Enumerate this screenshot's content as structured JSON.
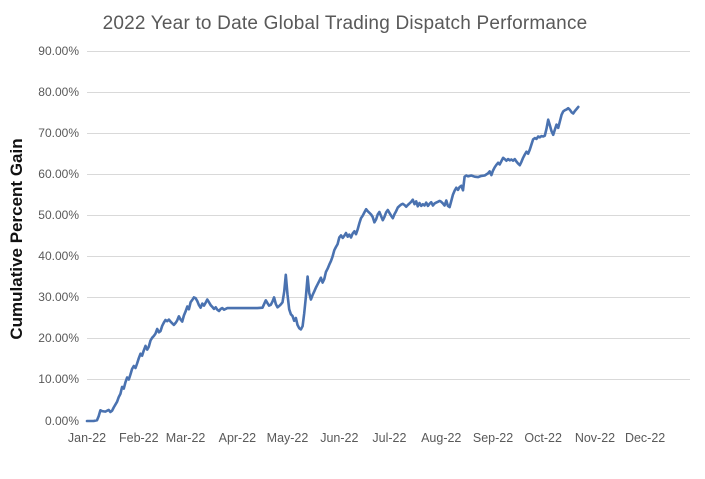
{
  "title": "2022 Year to Date Global Trading Dispatch Performance",
  "colors": {
    "line": "#4a72b0",
    "gridline": "#d9d9d9",
    "tick_label": "#595959",
    "title_text": "#595959",
    "y_axis_title_text": "#111111",
    "background": "#ffffff"
  },
  "chart_data": {
    "type": "line",
    "title": "2022 Year to Date Global Trading Dispatch Performance",
    "xlabel": "",
    "ylabel": "Cumulative Percent Gain",
    "legend": "none",
    "grid": "horizontal",
    "ylim": [
      0,
      90
    ],
    "y_tick_step": 10,
    "y_tick_labels": [
      "0.00%",
      "10.00%",
      "20.00%",
      "30.00%",
      "40.00%",
      "50.00%",
      "60.00%",
      "70.00%",
      "80.00%",
      "90.00%"
    ],
    "x_tick_labels": [
      "Jan-22",
      "Feb-22",
      "Mar-22",
      "Apr-22",
      "May-22",
      "Jun-22",
      "Jul-22",
      "Aug-22",
      "Sep-22",
      "Oct-22",
      "Nov-22",
      "Dec-22"
    ],
    "x_axis_note": "date axis Jan 1 2022 through Dec 2022; data ends about Oct 21 2022 at about 76.5%",
    "series": [
      {
        "name": "Cumulative Percent Gain",
        "x_unit": "day_of_year_2022",
        "y_unit": "percent",
        "points": [
          [
            0,
            0
          ],
          [
            2,
            0
          ],
          [
            4,
            0
          ],
          [
            6,
            0.2
          ],
          [
            7,
            1.2
          ],
          [
            8,
            2.6
          ],
          [
            9,
            2.4
          ],
          [
            11,
            2.3
          ],
          [
            13,
            2.7
          ],
          [
            14,
            2.2
          ],
          [
            15,
            2.5
          ],
          [
            16,
            3.3
          ],
          [
            18,
            4.7
          ],
          [
            19,
            5.8
          ],
          [
            20,
            6.6
          ],
          [
            21,
            8.3
          ],
          [
            22,
            7.9
          ],
          [
            23,
            9.4
          ],
          [
            24,
            10.6
          ],
          [
            25,
            10.1
          ],
          [
            26,
            11.3
          ],
          [
            27,
            12.7
          ],
          [
            28,
            13.4
          ],
          [
            29,
            12.9
          ],
          [
            30,
            14.0
          ],
          [
            31,
            15.3
          ],
          [
            32,
            16.4
          ],
          [
            33,
            15.9
          ],
          [
            34,
            17.2
          ],
          [
            35,
            18.3
          ],
          [
            36,
            17.4
          ],
          [
            37,
            18.1
          ],
          [
            38,
            19.6
          ],
          [
            39,
            20.3
          ],
          [
            40,
            20.7
          ],
          [
            41,
            21.3
          ],
          [
            42,
            22.4
          ],
          [
            43,
            21.6
          ],
          [
            44,
            21.9
          ],
          [
            45,
            23.2
          ],
          [
            46,
            24.0
          ],
          [
            47,
            24.6
          ],
          [
            48,
            24.3
          ],
          [
            49,
            24.7
          ],
          [
            50,
            24.2
          ],
          [
            51,
            23.8
          ],
          [
            52,
            23.4
          ],
          [
            53,
            23.9
          ],
          [
            54,
            24.5
          ],
          [
            55,
            25.5
          ],
          [
            56,
            24.7
          ],
          [
            57,
            24.2
          ],
          [
            58,
            25.7
          ],
          [
            59,
            26.7
          ],
          [
            60,
            27.9
          ],
          [
            61,
            27.2
          ],
          [
            62,
            28.9
          ],
          [
            63,
            29.5
          ],
          [
            64,
            30.1
          ],
          [
            65,
            29.9
          ],
          [
            66,
            29.2
          ],
          [
            67,
            28.2
          ],
          [
            68,
            27.6
          ],
          [
            69,
            28.6
          ],
          [
            70,
            28.1
          ],
          [
            71,
            28.8
          ],
          [
            72,
            29.6
          ],
          [
            73,
            28.9
          ],
          [
            74,
            28.2
          ],
          [
            75,
            27.8
          ],
          [
            76,
            27.3
          ],
          [
            77,
            27.7
          ],
          [
            78,
            27.1
          ],
          [
            79,
            26.8
          ],
          [
            80,
            27.3
          ],
          [
            81,
            27.5
          ],
          [
            82,
            27.1
          ],
          [
            84,
            27.5
          ],
          [
            86,
            27.5
          ],
          [
            90,
            27.5
          ],
          [
            94,
            27.5
          ],
          [
            98,
            27.5
          ],
          [
            102,
            27.5
          ],
          [
            105,
            27.6
          ],
          [
            107,
            29.4
          ],
          [
            108,
            28.7
          ],
          [
            109,
            28.1
          ],
          [
            110,
            28.3
          ],
          [
            111,
            29.1
          ],
          [
            112,
            30.1
          ],
          [
            113,
            28.5
          ],
          [
            114,
            27.7
          ],
          [
            115,
            28.0
          ],
          [
            116,
            28.4
          ],
          [
            117,
            28.9
          ],
          [
            118,
            31.5
          ],
          [
            119,
            35.6
          ],
          [
            120,
            30.8
          ],
          [
            121,
            27.2
          ],
          [
            122,
            26.0
          ],
          [
            123,
            25.6
          ],
          [
            124,
            24.4
          ],
          [
            125,
            25.1
          ],
          [
            126,
            23.4
          ],
          [
            127,
            22.6
          ],
          [
            128,
            22.3
          ],
          [
            129,
            23.1
          ],
          [
            130,
            26.2
          ],
          [
            131,
            30.3
          ],
          [
            132,
            35.2
          ],
          [
            133,
            31.2
          ],
          [
            134,
            29.6
          ],
          [
            135,
            30.7
          ],
          [
            136,
            31.6
          ],
          [
            137,
            32.5
          ],
          [
            138,
            33.3
          ],
          [
            139,
            34.1
          ],
          [
            140,
            34.9
          ],
          [
            141,
            33.7
          ],
          [
            142,
            34.6
          ],
          [
            143,
            36.3
          ],
          [
            144,
            37.1
          ],
          [
            145,
            38.1
          ],
          [
            146,
            39.0
          ],
          [
            147,
            40.1
          ],
          [
            148,
            41.6
          ],
          [
            149,
            42.4
          ],
          [
            150,
            43.1
          ],
          [
            151,
            44.7
          ],
          [
            152,
            45.2
          ],
          [
            153,
            44.6
          ],
          [
            154,
            45.1
          ],
          [
            155,
            45.8
          ],
          [
            156,
            44.9
          ],
          [
            157,
            45.4
          ],
          [
            158,
            44.7
          ],
          [
            159,
            45.7
          ],
          [
            160,
            46.2
          ],
          [
            161,
            45.5
          ],
          [
            162,
            46.7
          ],
          [
            163,
            48.2
          ],
          [
            164,
            49.4
          ],
          [
            165,
            50.0
          ],
          [
            166,
            50.8
          ],
          [
            167,
            51.6
          ],
          [
            168,
            51.1
          ],
          [
            169,
            50.7
          ],
          [
            170,
            50.3
          ],
          [
            171,
            49.7
          ],
          [
            172,
            48.4
          ],
          [
            173,
            49.1
          ],
          [
            174,
            50.3
          ],
          [
            175,
            50.9
          ],
          [
            176,
            49.9
          ],
          [
            177,
            48.9
          ],
          [
            178,
            49.7
          ],
          [
            179,
            50.8
          ],
          [
            180,
            51.4
          ],
          [
            181,
            50.7
          ],
          [
            182,
            50.0
          ],
          [
            183,
            49.4
          ],
          [
            184,
            50.4
          ],
          [
            185,
            51.1
          ],
          [
            186,
            52.0
          ],
          [
            187,
            52.4
          ],
          [
            188,
            52.7
          ],
          [
            189,
            52.9
          ],
          [
            190,
            52.6
          ],
          [
            191,
            52.2
          ],
          [
            192,
            52.6
          ],
          [
            193,
            53.0
          ],
          [
            194,
            53.4
          ],
          [
            195,
            53.9
          ],
          [
            196,
            52.8
          ],
          [
            197,
            53.5
          ],
          [
            198,
            52.3
          ],
          [
            199,
            53.1
          ],
          [
            200,
            52.4
          ],
          [
            201,
            52.8
          ],
          [
            202,
            52.5
          ],
          [
            203,
            53.2
          ],
          [
            204,
            52.4
          ],
          [
            205,
            52.9
          ],
          [
            206,
            53.3
          ],
          [
            207,
            52.5
          ],
          [
            208,
            53.0
          ],
          [
            209,
            53.2
          ],
          [
            210,
            53.4
          ],
          [
            211,
            53.6
          ],
          [
            212,
            53.4
          ],
          [
            213,
            53.0
          ],
          [
            214,
            52.5
          ],
          [
            215,
            53.7
          ],
          [
            216,
            52.4
          ],
          [
            217,
            52.1
          ],
          [
            218,
            53.6
          ],
          [
            219,
            55.1
          ],
          [
            220,
            56.1
          ],
          [
            221,
            56.8
          ],
          [
            222,
            56.3
          ],
          [
            223,
            57.0
          ],
          [
            224,
            57.3
          ],
          [
            225,
            56.2
          ],
          [
            226,
            59.5
          ],
          [
            227,
            59.8
          ],
          [
            228,
            59.6
          ],
          [
            230,
            59.8
          ],
          [
            232,
            59.5
          ],
          [
            234,
            59.4
          ],
          [
            236,
            59.7
          ],
          [
            238,
            59.8
          ],
          [
            240,
            60.3
          ],
          [
            241,
            60.8
          ],
          [
            242,
            59.9
          ],
          [
            243,
            61.0
          ],
          [
            244,
            61.8
          ],
          [
            245,
            62.4
          ],
          [
            246,
            62.9
          ],
          [
            247,
            62.5
          ],
          [
            248,
            63.3
          ],
          [
            249,
            64.1
          ],
          [
            250,
            63.8
          ],
          [
            251,
            63.4
          ],
          [
            252,
            63.8
          ],
          [
            253,
            63.5
          ],
          [
            254,
            63.7
          ],
          [
            255,
            63.4
          ],
          [
            256,
            63.8
          ],
          [
            257,
            63.2
          ],
          [
            258,
            62.7
          ],
          [
            259,
            62.3
          ],
          [
            260,
            63.1
          ],
          [
            261,
            64.1
          ],
          [
            262,
            64.9
          ],
          [
            263,
            65.6
          ],
          [
            264,
            65.1
          ],
          [
            265,
            66.1
          ],
          [
            266,
            67.4
          ],
          [
            267,
            68.6
          ],
          [
            268,
            68.9
          ],
          [
            269,
            68.7
          ],
          [
            270,
            69.3
          ],
          [
            271,
            69.1
          ],
          [
            272,
            69.4
          ],
          [
            273,
            69.3
          ],
          [
            274,
            69.5
          ],
          [
            275,
            71.2
          ],
          [
            276,
            73.4
          ],
          [
            277,
            72.0
          ],
          [
            278,
            70.6
          ],
          [
            279,
            69.7
          ],
          [
            280,
            71.0
          ],
          [
            281,
            72.2
          ],
          [
            282,
            71.4
          ],
          [
            283,
            73.0
          ],
          [
            284,
            74.6
          ],
          [
            285,
            75.4
          ],
          [
            286,
            75.7
          ],
          [
            287,
            75.9
          ],
          [
            288,
            76.2
          ],
          [
            289,
            75.8
          ],
          [
            290,
            75.2
          ],
          [
            291,
            74.9
          ],
          [
            292,
            75.5
          ],
          [
            293,
            76.0
          ],
          [
            294,
            76.5
          ]
        ]
      }
    ]
  }
}
